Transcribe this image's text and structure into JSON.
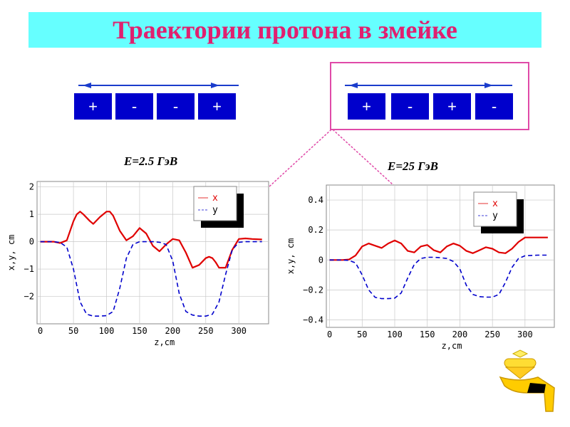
{
  "slide": {
    "title": "Траектории протона в змейке",
    "energy_left": "E=2.5 ГэВ",
    "energy_right": "E=25 ГэВ"
  },
  "magnets_left": [
    "+",
    "-",
    "-",
    "+"
  ],
  "magnets_right": [
    "+",
    "-",
    "+",
    "-"
  ],
  "colors": {
    "title_bg": "#66ffff",
    "title_text": "#e0206f",
    "magnet": "#0000cc",
    "x_series": "#e00000",
    "y_series": "#0000cc",
    "highlight": "#e04aa8"
  },
  "chart_data": [
    {
      "type": "line",
      "xlabel": "z,cm",
      "ylabel": "x,y, cm",
      "xlim": [
        -5,
        345
      ],
      "ylim": [
        -3,
        2.2
      ],
      "xticks": [
        0,
        50,
        100,
        150,
        200,
        250,
        300
      ],
      "yticks": [
        -2,
        -1,
        0,
        1,
        2
      ],
      "ytick_labels": [
        "−2",
        "−1",
        "0",
        "1",
        "2"
      ],
      "grid": true,
      "legend": "top-right",
      "series": [
        {
          "name": "x",
          "style": "solid",
          "x": [
            0,
            20,
            30,
            40,
            50,
            55,
            60,
            65,
            75,
            80,
            90,
            100,
            105,
            110,
            120,
            130,
            140,
            150,
            160,
            170,
            180,
            190,
            200,
            210,
            220,
            230,
            240,
            250,
            255,
            260,
            265,
            270,
            280,
            290,
            300,
            310,
            320,
            335
          ],
          "y": [
            0,
            0,
            -0.05,
            0.05,
            0.75,
            1.0,
            1.1,
            1.0,
            0.75,
            0.65,
            0.9,
            1.1,
            1.1,
            0.95,
            0.4,
            0.05,
            0.2,
            0.5,
            0.3,
            -0.15,
            -0.35,
            -0.1,
            0.1,
            0.05,
            -0.4,
            -0.95,
            -0.85,
            -0.6,
            -0.55,
            -0.6,
            -0.75,
            -0.95,
            -0.95,
            -0.3,
            0.1,
            0.12,
            0.1,
            0.08
          ]
        },
        {
          "name": "y",
          "style": "dashed",
          "x": [
            0,
            20,
            30,
            40,
            50,
            60,
            70,
            80,
            90,
            100,
            110,
            120,
            130,
            140,
            150,
            160,
            170,
            180,
            190,
            200,
            210,
            220,
            230,
            240,
            250,
            260,
            270,
            280,
            290,
            300,
            310,
            320,
            335
          ],
          "y": [
            0,
            0,
            -0.03,
            -0.2,
            -1.0,
            -2.2,
            -2.65,
            -2.72,
            -2.72,
            -2.7,
            -2.55,
            -1.7,
            -0.6,
            -0.1,
            0,
            0,
            0,
            -0.02,
            -0.1,
            -0.7,
            -1.9,
            -2.55,
            -2.68,
            -2.72,
            -2.72,
            -2.65,
            -2.2,
            -1.2,
            -0.3,
            -0.02,
            0,
            0,
            0
          ]
        }
      ]
    },
    {
      "type": "line",
      "xlabel": "z,cm",
      "ylabel": "x,y, cm",
      "xlim": [
        -5,
        345
      ],
      "ylim": [
        -0.45,
        0.5
      ],
      "xticks": [
        0,
        50,
        100,
        150,
        200,
        250,
        300
      ],
      "yticks": [
        -0.4,
        -0.2,
        0,
        0.2,
        0.4
      ],
      "ytick_labels": [
        "−0.4",
        "−0.2",
        "0",
        "0.2",
        "0.4"
      ],
      "grid": true,
      "legend": "top-right",
      "series": [
        {
          "name": "x",
          "style": "solid",
          "x": [
            0,
            20,
            30,
            40,
            50,
            60,
            70,
            80,
            90,
            100,
            110,
            120,
            130,
            140,
            150,
            160,
            170,
            180,
            190,
            200,
            210,
            220,
            230,
            240,
            250,
            260,
            270,
            280,
            290,
            300,
            310,
            320,
            335
          ],
          "y": [
            0,
            0,
            0.003,
            0.03,
            0.09,
            0.11,
            0.095,
            0.08,
            0.11,
            0.13,
            0.11,
            0.06,
            0.05,
            0.09,
            0.1,
            0.065,
            0.05,
            0.09,
            0.11,
            0.095,
            0.06,
            0.045,
            0.065,
            0.085,
            0.075,
            0.05,
            0.045,
            0.075,
            0.12,
            0.15,
            0.15,
            0.15,
            0.15
          ]
        },
        {
          "name": "y",
          "style": "dashed",
          "x": [
            0,
            20,
            30,
            40,
            50,
            60,
            70,
            80,
            90,
            100,
            110,
            120,
            130,
            140,
            150,
            160,
            170,
            180,
            190,
            200,
            210,
            220,
            230,
            240,
            250,
            260,
            270,
            280,
            290,
            300,
            310,
            320,
            335
          ],
          "y": [
            0,
            0,
            -0.003,
            -0.02,
            -0.1,
            -0.2,
            -0.25,
            -0.258,
            -0.258,
            -0.255,
            -0.22,
            -0.12,
            -0.03,
            0.01,
            0.018,
            0.018,
            0.015,
            0.01,
            -0.01,
            -0.06,
            -0.17,
            -0.23,
            -0.245,
            -0.248,
            -0.248,
            -0.23,
            -0.15,
            -0.05,
            0.01,
            0.028,
            0.03,
            0.032,
            0.032
          ]
        }
      ]
    }
  ]
}
